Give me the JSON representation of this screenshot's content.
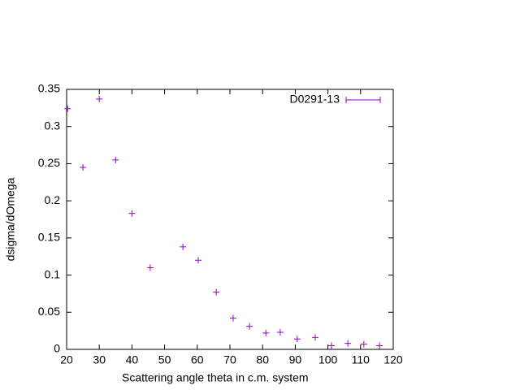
{
  "chart_data": {
    "type": "scatter",
    "xlabel": "Scattering angle theta in c.m. system",
    "ylabel": "dsigma/dOmega",
    "series": [
      {
        "name": "D0291-13",
        "color": "#9400d3",
        "x": [
          20.3,
          25,
          30,
          35,
          40,
          45.6,
          55.6,
          60.3,
          65.8,
          71,
          76,
          81,
          85.4,
          90.6,
          96.1,
          101.1,
          106.1,
          111,
          115.8
        ],
        "values": [
          0.324,
          0.245,
          0.337,
          0.255,
          0.183,
          0.11,
          0.138,
          0.12,
          0.077,
          0.042,
          0.031,
          0.022,
          0.023,
          0.014,
          0.016,
          0.005,
          0.008,
          0.007,
          0.005
        ]
      }
    ],
    "xlim": [
      20,
      120
    ],
    "xticks": [
      20,
      30,
      40,
      50,
      60,
      70,
      80,
      90,
      100,
      110,
      120
    ],
    "ylim": [
      0,
      0.35
    ],
    "yticks": [
      0,
      0.05,
      0.1,
      0.15,
      0.2,
      0.25,
      0.3,
      0.35
    ],
    "legend": "top-right"
  }
}
